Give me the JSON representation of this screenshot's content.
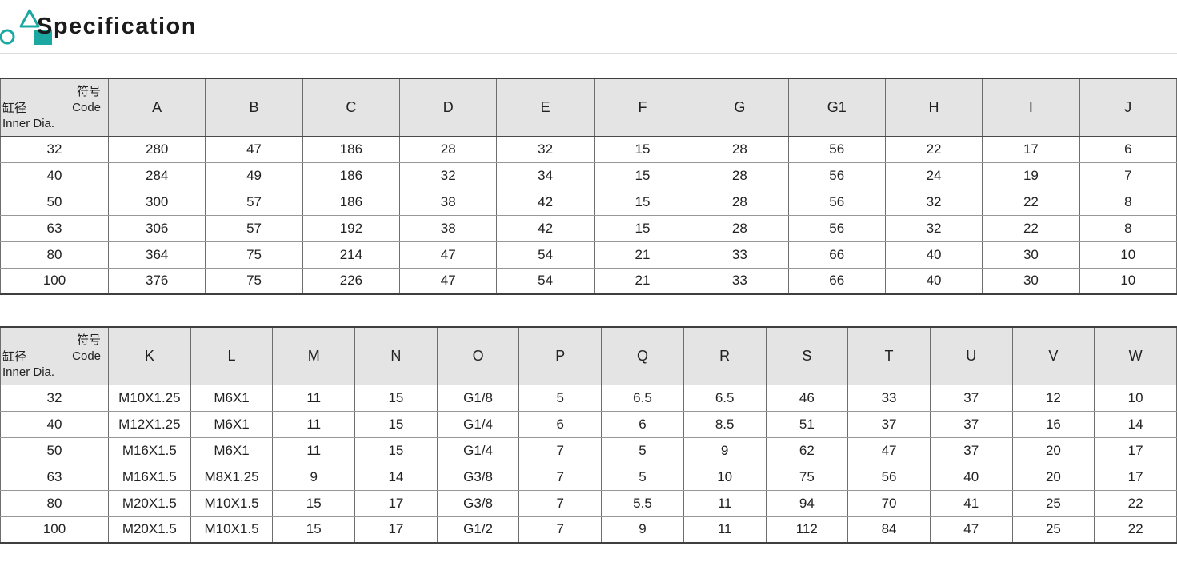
{
  "page": {
    "title": "Specification"
  },
  "icon": {
    "name": "geometric-shapes-logo",
    "accent_color": "#1ba8a3"
  },
  "colors": {
    "accent_teal": "#1ba8a3",
    "header_cell_bg": "#e4e4e4",
    "table_border_dark": "#3f3f3f",
    "table_border_mid": "#6e6e6e",
    "row_separator": "#979797",
    "title_divider": "#dcdcdc"
  },
  "corner": {
    "top_line1": "符号",
    "top_line2": "Code",
    "bottom_line1": "缸径",
    "bottom_line2": "Inner Dia."
  },
  "tables": [
    {
      "columns": [
        "A",
        "B",
        "C",
        "D",
        "E",
        "F",
        "G",
        "G1",
        "H",
        "I",
        "J"
      ],
      "rows": [
        {
          "dia": "32",
          "values": [
            "280",
            "47",
            "186",
            "28",
            "32",
            "15",
            "28",
            "56",
            "22",
            "17",
            "6"
          ]
        },
        {
          "dia": "40",
          "values": [
            "284",
            "49",
            "186",
            "32",
            "34",
            "15",
            "28",
            "56",
            "24",
            "19",
            "7"
          ]
        },
        {
          "dia": "50",
          "values": [
            "300",
            "57",
            "186",
            "38",
            "42",
            "15",
            "28",
            "56",
            "32",
            "22",
            "8"
          ]
        },
        {
          "dia": "63",
          "values": [
            "306",
            "57",
            "192",
            "38",
            "42",
            "15",
            "28",
            "56",
            "32",
            "22",
            "8"
          ]
        },
        {
          "dia": "80",
          "values": [
            "364",
            "75",
            "214",
            "47",
            "54",
            "21",
            "33",
            "66",
            "40",
            "30",
            "10"
          ]
        },
        {
          "dia": "100",
          "values": [
            "376",
            "75",
            "226",
            "47",
            "54",
            "21",
            "33",
            "66",
            "40",
            "30",
            "10"
          ]
        }
      ]
    },
    {
      "columns": [
        "K",
        "L",
        "M",
        "N",
        "O",
        "P",
        "Q",
        "R",
        "S",
        "T",
        "U",
        "V",
        "W"
      ],
      "rows": [
        {
          "dia": "32",
          "values": [
            "M10X1.25",
            "M6X1",
            "11",
            "15",
            "G1/8",
            "5",
            "6.5",
            "6.5",
            "46",
            "33",
            "37",
            "12",
            "10"
          ]
        },
        {
          "dia": "40",
          "values": [
            "M12X1.25",
            "M6X1",
            "11",
            "15",
            "G1/4",
            "6",
            "6",
            "8.5",
            "51",
            "37",
            "37",
            "16",
            "14"
          ]
        },
        {
          "dia": "50",
          "values": [
            "M16X1.5",
            "M6X1",
            "11",
            "15",
            "G1/4",
            "7",
            "5",
            "9",
            "62",
            "47",
            "37",
            "20",
            "17"
          ]
        },
        {
          "dia": "63",
          "values": [
            "M16X1.5",
            "M8X1.25",
            "9",
            "14",
            "G3/8",
            "7",
            "5",
            "10",
            "75",
            "56",
            "40",
            "20",
            "17"
          ]
        },
        {
          "dia": "80",
          "values": [
            "M20X1.5",
            "M10X1.5",
            "15",
            "17",
            "G3/8",
            "7",
            "5.5",
            "11",
            "94",
            "70",
            "41",
            "25",
            "22"
          ]
        },
        {
          "dia": "100",
          "values": [
            "M20X1.5",
            "M10X1.5",
            "15",
            "17",
            "G1/2",
            "7",
            "9",
            "11",
            "112",
            "84",
            "47",
            "25",
            "22"
          ]
        }
      ]
    }
  ]
}
